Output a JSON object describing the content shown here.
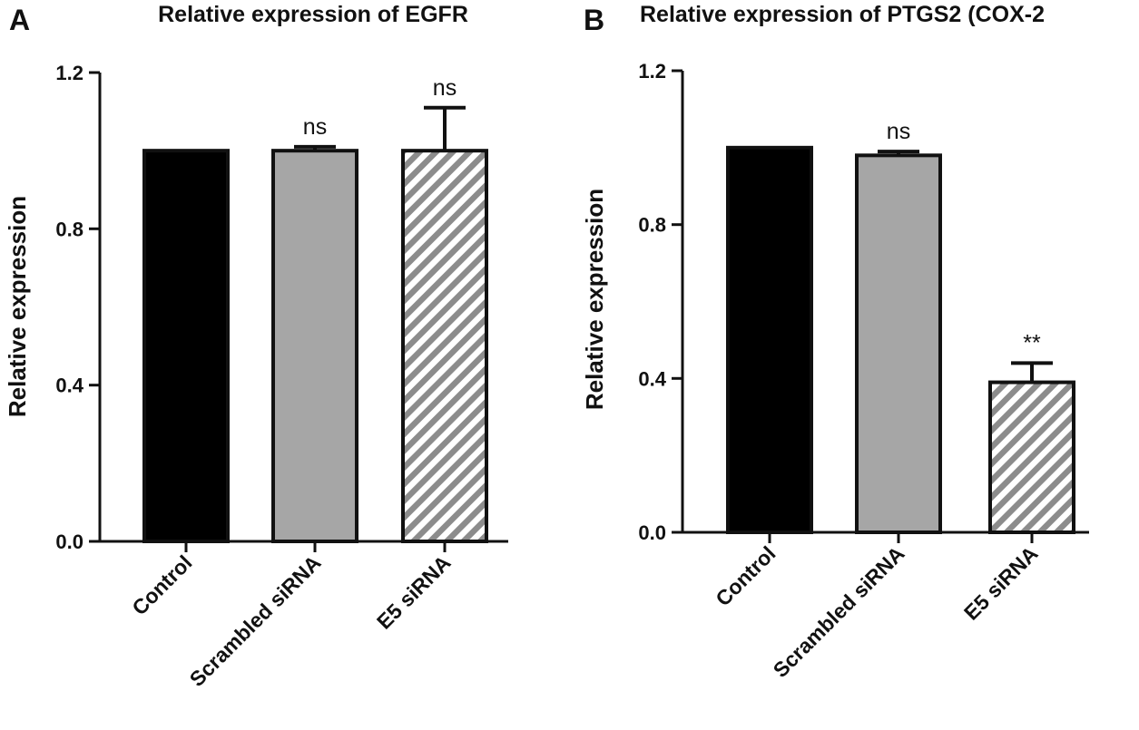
{
  "colors": {
    "axis": "#111111",
    "control_fill": "#000000",
    "scrambled_fill": "#a6a6a6",
    "hatch_light": "#ffffff",
    "hatch_dark": "#8c8c8c"
  },
  "chart_data": [
    {
      "type": "bar",
      "panel": "A",
      "title": "Relative expression of EGFR",
      "xlabel": "",
      "ylabel": "Relative expression",
      "ylim": [
        0,
        1.2
      ],
      "yticks": [
        "0.0",
        "0.4",
        "0.8",
        "1.2"
      ],
      "grid": false,
      "categories": [
        "Control",
        "Scrambled siRNA",
        "E5 siRNA"
      ],
      "values": [
        1.0,
        1.0,
        1.0
      ],
      "errors": [
        0.0,
        0.01,
        0.11
      ],
      "significance": [
        "",
        "ns",
        "ns"
      ],
      "fills": [
        "solid-black",
        "solid-gray",
        "hatched"
      ]
    },
    {
      "type": "bar",
      "panel": "B",
      "title": "Relative expression of PTGS2 (COX-2",
      "xlabel": "",
      "ylabel": "Relative expression",
      "ylim": [
        0,
        1.2
      ],
      "yticks": [
        "0.0",
        "0.4",
        "0.8",
        "1.2"
      ],
      "grid": false,
      "categories": [
        "Control",
        "Scrambled siRNA",
        "E5 siRNA"
      ],
      "values": [
        1.0,
        0.98,
        0.39
      ],
      "errors": [
        0.0,
        0.01,
        0.05
      ],
      "significance": [
        "",
        "ns",
        "**"
      ],
      "fills": [
        "solid-black",
        "solid-gray",
        "hatched"
      ]
    }
  ]
}
